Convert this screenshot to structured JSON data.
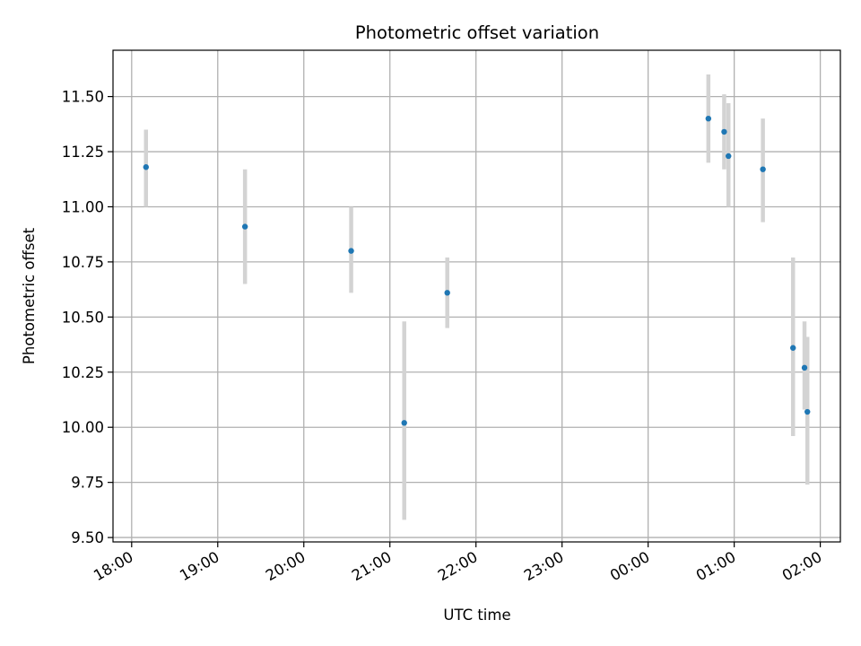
{
  "chart_data": {
    "type": "scatter",
    "title": "Photometric offset variation",
    "xlabel": "UTC time",
    "ylabel": "Photometric offset",
    "x_axis_kind": "time",
    "x_ticks": [
      "18:00",
      "19:00",
      "20:00",
      "21:00",
      "22:00",
      "23:00",
      "00:00",
      "01:00",
      "02:00"
    ],
    "y_ticks": [
      "9.50",
      "9.75",
      "10.00",
      "10.25",
      "10.50",
      "10.75",
      "11.00",
      "11.25",
      "11.50"
    ],
    "xlim": [
      "17:47",
      "02:14"
    ],
    "ylim": [
      9.48,
      11.71
    ],
    "grid": true,
    "colors": {
      "points": "#1f77b4",
      "error_bars": "#d3d3d3"
    },
    "series": [
      {
        "points": [
          {
            "x": "18:10",
            "y": 11.18,
            "yerr_low": 11.0,
            "yerr_high": 11.35
          },
          {
            "x": "19:19",
            "y": 10.91,
            "yerr_low": 10.65,
            "yerr_high": 11.17
          },
          {
            "x": "20:33",
            "y": 10.8,
            "yerr_low": 10.61,
            "yerr_high": 11.0
          },
          {
            "x": "21:10",
            "y": 10.02,
            "yerr_low": 9.58,
            "yerr_high": 10.48
          },
          {
            "x": "21:40",
            "y": 10.61,
            "yerr_low": 10.45,
            "yerr_high": 10.77
          },
          {
            "x": "00:42",
            "y": 11.4,
            "yerr_low": 11.2,
            "yerr_high": 11.6
          },
          {
            "x": "00:53",
            "y": 11.34,
            "yerr_low": 11.17,
            "yerr_high": 11.51
          },
          {
            "x": "00:56",
            "y": 11.23,
            "yerr_low": 11.0,
            "yerr_high": 11.47
          },
          {
            "x": "01:20",
            "y": 11.17,
            "yerr_low": 10.93,
            "yerr_high": 11.4
          },
          {
            "x": "01:41",
            "y": 10.36,
            "yerr_low": 9.96,
            "yerr_high": 10.77
          },
          {
            "x": "01:49",
            "y": 10.27,
            "yerr_low": 10.08,
            "yerr_high": 10.48
          },
          {
            "x": "01:51",
            "y": 10.07,
            "yerr_low": 9.74,
            "yerr_high": 10.41
          }
        ]
      }
    ]
  }
}
